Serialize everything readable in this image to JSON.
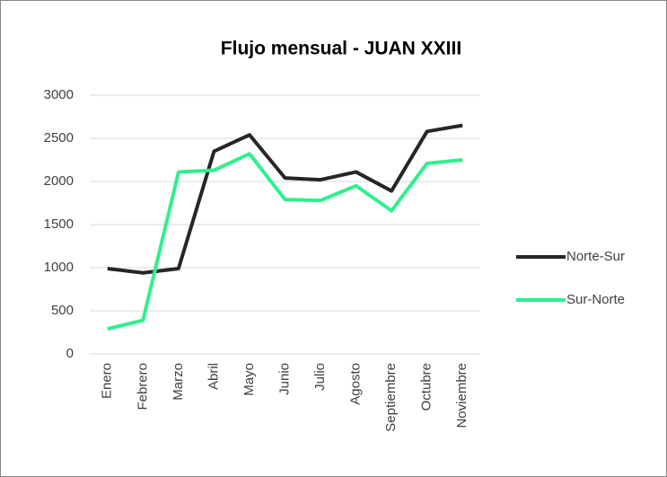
{
  "chart_data": {
    "type": "line",
    "title": "Flujo mensual - JUAN XXIII",
    "categories": [
      "Enero",
      "Febrero",
      "Marzo",
      "Abril",
      "Mayo",
      "Junio",
      "Julio",
      "Agosto",
      "Septiembre",
      "Octubre",
      "Noviembre"
    ],
    "series": [
      {
        "name": "Norte-Sur",
        "color": "#262626",
        "values": [
          990,
          940,
          990,
          2350,
          2540,
          2040,
          2020,
          2110,
          1890,
          2580,
          2650
        ]
      },
      {
        "name": "Sur-Norte",
        "color": "#2ef08e",
        "values": [
          290,
          390,
          2110,
          2130,
          2320,
          1790,
          1780,
          1950,
          1660,
          2210,
          2250
        ]
      }
    ],
    "ylim": [
      0,
      3000
    ],
    "yticks": [
      0,
      500,
      1000,
      1500,
      2000,
      2500,
      3000
    ],
    "grid": true,
    "legend": "right"
  }
}
